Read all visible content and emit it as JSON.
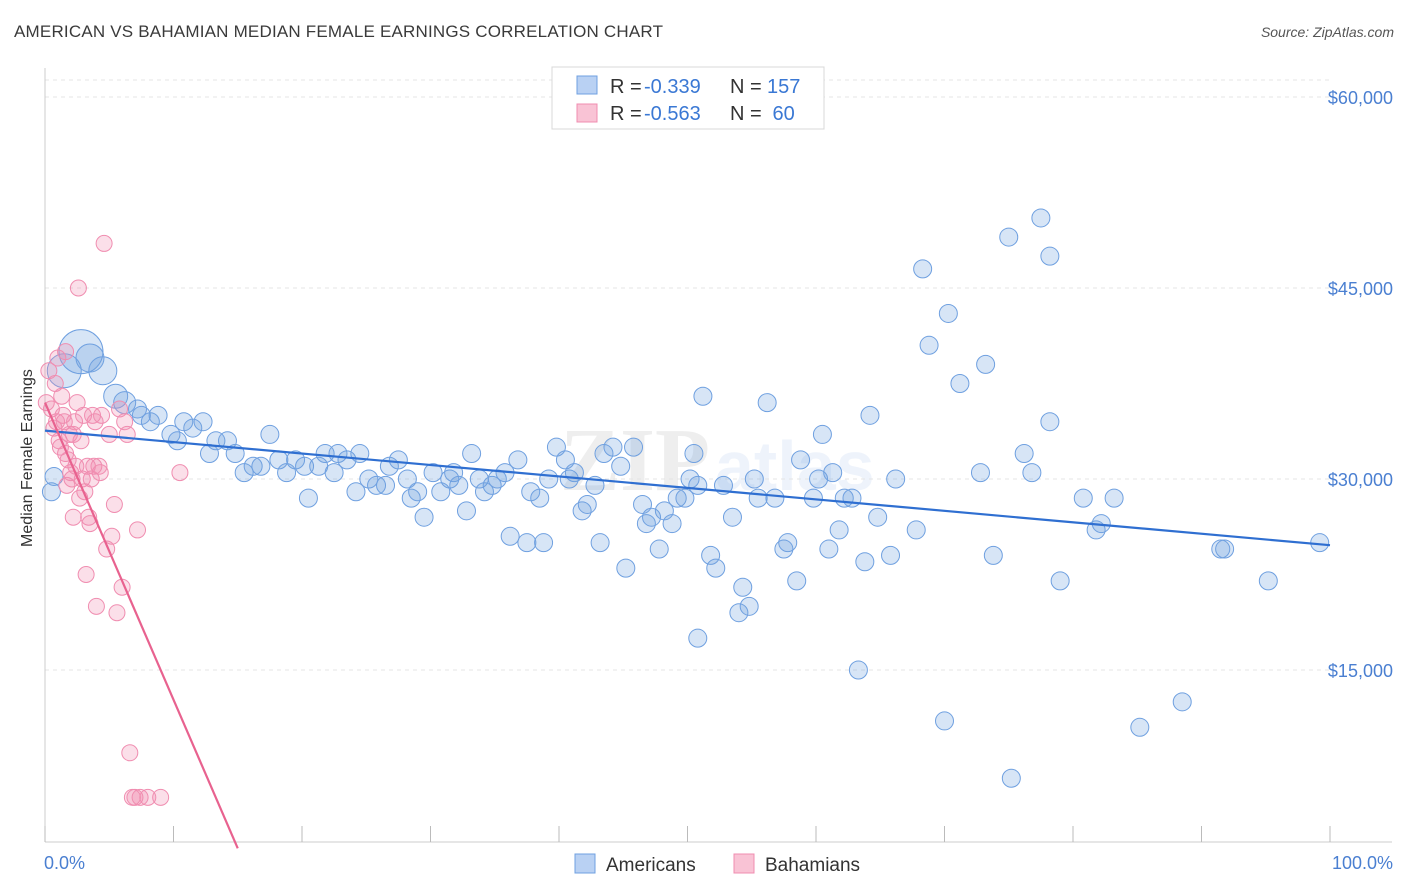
{
  "header": {
    "title": "AMERICAN VS BAHAMIAN MEDIAN FEMALE EARNINGS CORRELATION CHART",
    "source": "Source: ZipAtlas.com"
  },
  "stats": [
    {
      "r_label": "R =",
      "r": "-0.339",
      "n_label": "N =",
      "n": "157"
    },
    {
      "r_label": "R =",
      "r": "-0.563",
      "n_label": "N =",
      "n": " 60"
    }
  ],
  "chart_data": {
    "type": "scatter",
    "title": "AMERICAN VS BAHAMIAN MEDIAN FEMALE EARNINGS CORRELATION CHART",
    "ylabel": "Median Female Earnings",
    "xlabel": "",
    "xlim": [
      0,
      100
    ],
    "ylim": [
      0,
      63000
    ],
    "x_tick_labels": [
      "0.0%",
      "100.0%"
    ],
    "y_ticks": [
      15000,
      30000,
      45000,
      60000
    ],
    "y_tick_labels": [
      "$15,000",
      "$30,000",
      "$45,000",
      "$60,000"
    ],
    "grid": true,
    "legend_position": "bottom",
    "colors": {
      "Americans": "#6fa0e0",
      "Bahamians": "#f08db0",
      "americans_line": "#2f6fd1",
      "bahamians_line": "#e8628f"
    },
    "series": [
      {
        "name": "Americans",
        "trend": {
          "x": [
            0,
            100
          ],
          "y": [
            33800,
            24800
          ]
        },
        "points": [
          [
            0.5,
            29.0
          ],
          [
            0.7,
            30.2
          ],
          [
            1.5,
            38.5
          ],
          [
            2.8,
            40.0
          ],
          [
            3.5,
            39.5
          ],
          [
            4.5,
            38.5
          ],
          [
            5.5,
            36.5
          ],
          [
            6.2,
            36.0
          ],
          [
            7.2,
            35.5
          ],
          [
            7.5,
            35.0
          ],
          [
            8.2,
            34.5
          ],
          [
            8.8,
            35.0
          ],
          [
            9.8,
            33.5
          ],
          [
            10.3,
            33.0
          ],
          [
            10.8,
            34.5
          ],
          [
            11.5,
            34.0
          ],
          [
            12.3,
            34.5
          ],
          [
            12.8,
            32.0
          ],
          [
            13.3,
            33.0
          ],
          [
            14.2,
            33.0
          ],
          [
            14.8,
            32.0
          ],
          [
            15.5,
            30.5
          ],
          [
            16.2,
            31.0
          ],
          [
            16.8,
            31.0
          ],
          [
            17.5,
            33.5
          ],
          [
            18.2,
            31.5
          ],
          [
            18.8,
            30.5
          ],
          [
            19.5,
            31.5
          ],
          [
            20.2,
            31.0
          ],
          [
            20.5,
            28.5
          ],
          [
            21.3,
            31.0
          ],
          [
            21.8,
            32.0
          ],
          [
            22.5,
            30.5
          ],
          [
            22.8,
            32.0
          ],
          [
            23.5,
            31.5
          ],
          [
            24.2,
            29.0
          ],
          [
            24.5,
            32.0
          ],
          [
            25.2,
            30.0
          ],
          [
            25.8,
            29.5
          ],
          [
            26.5,
            29.5
          ],
          [
            26.8,
            31.0
          ],
          [
            27.5,
            31.5
          ],
          [
            28.2,
            30.0
          ],
          [
            28.5,
            28.5
          ],
          [
            29.0,
            29.0
          ],
          [
            29.5,
            27.0
          ],
          [
            30.2,
            30.5
          ],
          [
            30.8,
            29.0
          ],
          [
            31.5,
            30.0
          ],
          [
            31.8,
            30.5
          ],
          [
            32.2,
            29.5
          ],
          [
            32.8,
            27.5
          ],
          [
            33.2,
            32.0
          ],
          [
            33.8,
            30.0
          ],
          [
            34.2,
            29.0
          ],
          [
            34.8,
            29.5
          ],
          [
            35.2,
            30.0
          ],
          [
            35.8,
            30.5
          ],
          [
            36.2,
            25.5
          ],
          [
            36.8,
            31.5
          ],
          [
            37.5,
            25.0
          ],
          [
            37.8,
            29.0
          ],
          [
            38.5,
            28.5
          ],
          [
            38.8,
            25.0
          ],
          [
            39.2,
            30.0
          ],
          [
            39.8,
            32.5
          ],
          [
            40.5,
            31.5
          ],
          [
            40.8,
            30.0
          ],
          [
            41.2,
            30.5
          ],
          [
            41.8,
            27.5
          ],
          [
            42.2,
            28.0
          ],
          [
            42.8,
            29.5
          ],
          [
            43.2,
            25.0
          ],
          [
            43.5,
            32.0
          ],
          [
            44.2,
            32.5
          ],
          [
            44.8,
            31.0
          ],
          [
            45.2,
            23.0
          ],
          [
            45.8,
            32.5
          ],
          [
            46.5,
            28.0
          ],
          [
            46.8,
            26.5
          ],
          [
            47.2,
            27.0
          ],
          [
            47.8,
            24.5
          ],
          [
            48.2,
            27.5
          ],
          [
            48.8,
            26.5
          ],
          [
            49.2,
            28.5
          ],
          [
            49.8,
            28.5
          ],
          [
            50.2,
            30.0
          ],
          [
            50.8,
            29.5
          ],
          [
            50.5,
            32.0
          ],
          [
            50.8,
            17.5
          ],
          [
            51.2,
            36.5
          ],
          [
            51.8,
            24.0
          ],
          [
            52.2,
            23.0
          ],
          [
            52.8,
            29.5
          ],
          [
            53.5,
            27.0
          ],
          [
            54.0,
            19.5
          ],
          [
            54.3,
            21.5
          ],
          [
            54.8,
            20.0
          ],
          [
            55.2,
            30.0
          ],
          [
            55.5,
            28.5
          ],
          [
            56.2,
            36.0
          ],
          [
            56.8,
            28.5
          ],
          [
            57.5,
            24.5
          ],
          [
            57.8,
            25.0
          ],
          [
            58.5,
            22.0
          ],
          [
            58.8,
            31.5
          ],
          [
            59.8,
            28.5
          ],
          [
            60.2,
            30.0
          ],
          [
            60.5,
            33.5
          ],
          [
            61.0,
            24.5
          ],
          [
            61.3,
            30.5
          ],
          [
            61.8,
            26.0
          ],
          [
            62.2,
            28.5
          ],
          [
            62.8,
            28.5
          ],
          [
            63.3,
            15.0
          ],
          [
            63.8,
            23.5
          ],
          [
            64.2,
            35.0
          ],
          [
            64.8,
            27.0
          ],
          [
            65.8,
            24.0
          ],
          [
            66.2,
            30.0
          ],
          [
            67.8,
            26.0
          ],
          [
            68.3,
            46.5
          ],
          [
            68.8,
            40.5
          ],
          [
            70.0,
            11.0
          ],
          [
            70.3,
            43.0
          ],
          [
            71.2,
            37.5
          ],
          [
            72.8,
            30.5
          ],
          [
            73.2,
            39.0
          ],
          [
            73.8,
            24.0
          ],
          [
            75.0,
            49.0
          ],
          [
            75.2,
            6.5
          ],
          [
            76.2,
            32.0
          ],
          [
            76.8,
            30.5
          ],
          [
            77.5,
            50.5
          ],
          [
            78.2,
            34.5
          ],
          [
            78.2,
            47.5
          ],
          [
            79.0,
            22.0
          ],
          [
            80.8,
            28.5
          ],
          [
            81.8,
            26.0
          ],
          [
            82.2,
            26.5
          ],
          [
            83.2,
            28.5
          ],
          [
            85.2,
            10.5
          ],
          [
            88.5,
            12.5
          ],
          [
            91.5,
            24.5
          ],
          [
            91.8,
            24.5
          ],
          [
            95.2,
            22.0
          ],
          [
            99.2,
            25.0
          ]
        ]
      },
      {
        "name": "Bahamians",
        "trend": {
          "x": [
            0,
            15
          ],
          "y": [
            36000,
            1000
          ]
        },
        "points": [
          [
            0.1,
            36.0
          ],
          [
            0.3,
            38.5
          ],
          [
            0.5,
            35.5
          ],
          [
            0.7,
            34.0
          ],
          [
            0.8,
            37.5
          ],
          [
            1.0,
            39.5
          ],
          [
            1.1,
            33.0
          ],
          [
            1.2,
            32.5
          ],
          [
            1.3,
            36.5
          ],
          [
            1.4,
            35.0
          ],
          [
            1.5,
            34.5
          ],
          [
            1.6,
            40.0
          ],
          [
            1.7,
            29.5
          ],
          [
            1.8,
            31.5
          ],
          [
            1.9,
            33.5
          ],
          [
            2.0,
            30.5
          ],
          [
            2.1,
            30.0
          ],
          [
            2.2,
            27.0
          ],
          [
            2.3,
            34.5
          ],
          [
            2.4,
            31.0
          ],
          [
            2.5,
            36.0
          ],
          [
            2.6,
            45.0
          ],
          [
            2.7,
            28.5
          ],
          [
            2.8,
            33.0
          ],
          [
            2.9,
            30.0
          ],
          [
            3.0,
            35.0
          ],
          [
            3.1,
            29.0
          ],
          [
            3.2,
            22.5
          ],
          [
            3.3,
            31.0
          ],
          [
            3.4,
            27.0
          ],
          [
            3.5,
            26.5
          ],
          [
            3.6,
            30.0
          ],
          [
            3.7,
            35.0
          ],
          [
            3.8,
            31.0
          ],
          [
            4.0,
            20.0
          ],
          [
            4.2,
            31.0
          ],
          [
            4.4,
            35.0
          ],
          [
            4.6,
            48.5
          ],
          [
            4.8,
            24.5
          ],
          [
            5.0,
            33.5
          ],
          [
            5.2,
            25.5
          ],
          [
            5.4,
            28.0
          ],
          [
            5.6,
            19.5
          ],
          [
            5.8,
            35.5
          ],
          [
            6.0,
            21.5
          ],
          [
            6.2,
            34.5
          ],
          [
            6.4,
            33.5
          ],
          [
            6.6,
            8.5
          ],
          [
            6.8,
            5.0
          ],
          [
            7.0,
            5.0
          ],
          [
            7.2,
            26.0
          ],
          [
            7.4,
            5.0
          ],
          [
            8.0,
            5.0
          ],
          [
            9.0,
            5.0
          ],
          [
            10.5,
            30.5
          ],
          [
            4.3,
            30.5
          ],
          [
            2.2,
            33.5
          ],
          [
            1.6,
            32.0
          ],
          [
            0.9,
            34.5
          ],
          [
            3.9,
            34.5
          ]
        ]
      }
    ]
  },
  "legend": {
    "items": [
      {
        "label": "Americans"
      },
      {
        "label": "Bahamians"
      }
    ]
  }
}
